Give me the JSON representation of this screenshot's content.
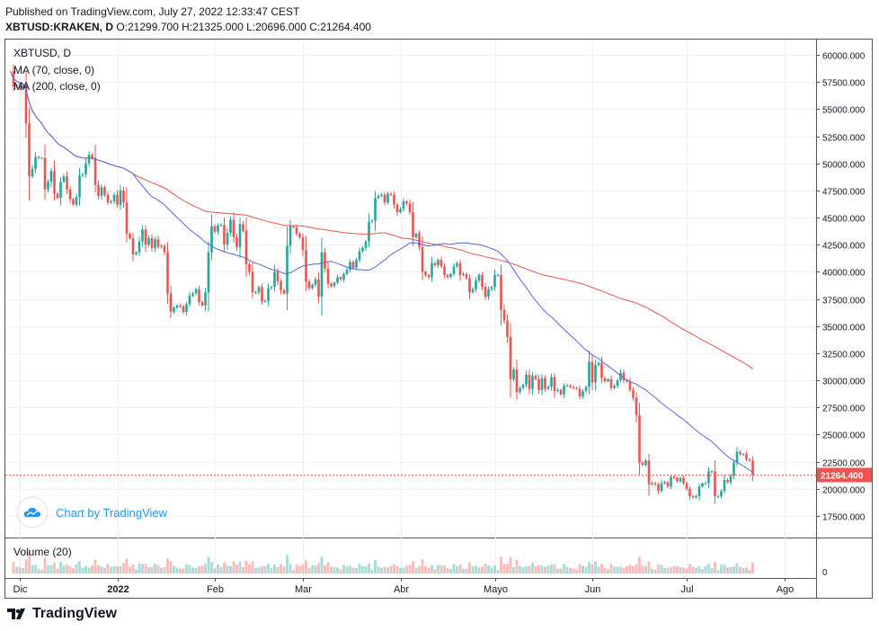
{
  "header": {
    "published": "Published on TradingView.com, July 27, 2022 12:33:47 CEST",
    "symbol": "XBTUSD:KRAKEN, D",
    "ohlc": "O:21299.700 H:21325.000 L:20696.000 C:21264.400"
  },
  "legend": {
    "symbol": "XBTUSD, D",
    "ma70": "MA (70, close, 0)",
    "ma200": "MA (200, close, 0)",
    "volume": "Volume (20)"
  },
  "branding": {
    "chart_by": "Chart by TradingView",
    "footer": "TradingView"
  },
  "colors": {
    "up": "#26a69a",
    "down": "#ef5350",
    "ma70": "#5b63e0",
    "ma200": "#e9534c",
    "link": "#2196f3"
  },
  "chart_data": {
    "type": "candlestick",
    "ylim": [
      15500,
      61500
    ],
    "y_ticks": [
      17500,
      20000,
      22500,
      25000,
      27500,
      30000,
      32500,
      35000,
      37500,
      40000,
      42500,
      45000,
      47500,
      50000,
      52500,
      55000,
      57500,
      60000
    ],
    "y_tick_labels": [
      "17500.000",
      "20000.000",
      "22500.000",
      "25000.000",
      "27500.000",
      "30000.000",
      "32500.000",
      "35000.000",
      "37500.000",
      "40000.000",
      "42500.000",
      "45000.000",
      "47500.000",
      "50000.000",
      "52500.000",
      "55000.000",
      "57500.000",
      "60000.000"
    ],
    "x_ticks": [
      {
        "label": "Dic",
        "day": 0
      },
      {
        "label": "2022",
        "day": 31
      },
      {
        "label": "Feb",
        "day": 62
      },
      {
        "label": "Mar",
        "day": 90
      },
      {
        "label": "Abr",
        "day": 121
      },
      {
        "label": "Mayo",
        "day": 151
      },
      {
        "label": "Jun",
        "day": 182
      },
      {
        "label": "Jul",
        "day": 212
      },
      {
        "label": "Ago",
        "day": 243
      }
    ],
    "last_price": 21264.4,
    "last_price_label": "21264.400",
    "volume_tick_label": "0",
    "series_closes": [
      [
        -3,
        58500
      ],
      [
        -2,
        57100
      ],
      [
        -1,
        57200
      ],
      [
        0,
        56900
      ],
      [
        1,
        57200
      ],
      [
        2,
        53700
      ],
      [
        3,
        48800
      ],
      [
        4,
        49500
      ],
      [
        5,
        50600
      ],
      [
        6,
        50500
      ],
      [
        7,
        50500
      ],
      [
        8,
        47600
      ],
      [
        9,
        48300
      ],
      [
        10,
        49300
      ],
      [
        11,
        47200
      ],
      [
        12,
        46800
      ],
      [
        13,
        48300
      ],
      [
        14,
        48800
      ],
      [
        15,
        47600
      ],
      [
        16,
        46700
      ],
      [
        17,
        46200
      ],
      [
        18,
        46900
      ],
      [
        19,
        48900
      ],
      [
        20,
        49000
      ],
      [
        21,
        50000
      ],
      [
        22,
        50800
      ],
      [
        23,
        50500
      ],
      [
        24,
        48000
      ],
      [
        25,
        47000
      ],
      [
        26,
        47800
      ],
      [
        27,
        47100
      ],
      [
        28,
        46400
      ],
      [
        29,
        46500
      ],
      [
        30,
        47100
      ],
      [
        31,
        46200
      ],
      [
        32,
        47500
      ],
      [
        33,
        46400
      ],
      [
        34,
        43500
      ],
      [
        35,
        43100
      ],
      [
        36,
        41600
      ],
      [
        37,
        41800
      ],
      [
        38,
        42800
      ],
      [
        39,
        43900
      ],
      [
        40,
        42500
      ],
      [
        41,
        43100
      ],
      [
        42,
        42200
      ],
      [
        43,
        43000
      ],
      [
        44,
        42300
      ],
      [
        45,
        42400
      ],
      [
        46,
        41800
      ],
      [
        47,
        38000
      ],
      [
        48,
        36300
      ],
      [
        49,
        36700
      ],
      [
        50,
        36900
      ],
      [
        51,
        36800
      ],
      [
        52,
        36300
      ],
      [
        53,
        37000
      ],
      [
        54,
        37800
      ],
      [
        55,
        38000
      ],
      [
        56,
        38400
      ],
      [
        57,
        37200
      ],
      [
        58,
        36900
      ],
      [
        59,
        38100
      ],
      [
        60,
        41800
      ],
      [
        61,
        44200
      ],
      [
        62,
        43700
      ],
      [
        63,
        44300
      ],
      [
        64,
        44300
      ],
      [
        65,
        42500
      ],
      [
        66,
        43600
      ],
      [
        67,
        44800
      ],
      [
        68,
        43200
      ],
      [
        69,
        42300
      ],
      [
        70,
        44400
      ],
      [
        71,
        43800
      ],
      [
        72,
        40700
      ],
      [
        73,
        40000
      ],
      [
        74,
        38100
      ],
      [
        75,
        38100
      ],
      [
        76,
        38600
      ],
      [
        77,
        37300
      ],
      [
        78,
        37300
      ],
      [
        79,
        38500
      ],
      [
        80,
        38600
      ],
      [
        81,
        40000
      ],
      [
        82,
        39100
      ],
      [
        83,
        38300
      ],
      [
        84,
        38000
      ],
      [
        85,
        42400
      ],
      [
        86,
        44200
      ],
      [
        87,
        44100
      ],
      [
        88,
        43500
      ],
      [
        89,
        43200
      ],
      [
        90,
        42000
      ],
      [
        91,
        39100
      ],
      [
        92,
        38500
      ],
      [
        93,
        38800
      ],
      [
        94,
        39300
      ],
      [
        95,
        37700
      ],
      [
        96,
        41800
      ],
      [
        97,
        40300
      ],
      [
        98,
        38900
      ],
      [
        99,
        38700
      ],
      [
        100,
        39000
      ],
      [
        101,
        39500
      ],
      [
        102,
        39300
      ],
      [
        103,
        39800
      ],
      [
        104,
        40200
      ],
      [
        105,
        40900
      ],
      [
        106,
        40400
      ],
      [
        107,
        41100
      ],
      [
        108,
        41900
      ],
      [
        109,
        42200
      ],
      [
        110,
        42800
      ],
      [
        111,
        44600
      ],
      [
        112,
        44700
      ],
      [
        113,
        46800
      ],
      [
        114,
        47000
      ],
      [
        115,
        47100
      ],
      [
        116,
        46400
      ],
      [
        117,
        47200
      ],
      [
        118,
        47100
      ],
      [
        119,
        46200
      ],
      [
        120,
        45500
      ],
      [
        121,
        45800
      ],
      [
        122,
        46500
      ],
      [
        123,
        46300
      ],
      [
        124,
        45500
      ],
      [
        125,
        43200
      ],
      [
        126,
        43500
      ],
      [
        127,
        42300
      ],
      [
        128,
        40000
      ],
      [
        129,
        39700
      ],
      [
        130,
        39500
      ],
      [
        131,
        40800
      ],
      [
        132,
        40600
      ],
      [
        133,
        41100
      ],
      [
        134,
        40500
      ],
      [
        135,
        39700
      ],
      [
        136,
        39500
      ],
      [
        137,
        39800
      ],
      [
        138,
        40500
      ],
      [
        139,
        40800
      ],
      [
        140,
        39700
      ],
      [
        141,
        39800
      ],
      [
        142,
        39400
      ],
      [
        143,
        38100
      ],
      [
        144,
        38400
      ],
      [
        145,
        39200
      ],
      [
        146,
        39700
      ],
      [
        147,
        38600
      ],
      [
        148,
        37700
      ],
      [
        149,
        38400
      ],
      [
        150,
        38600
      ],
      [
        151,
        39700
      ],
      [
        152,
        39700
      ],
      [
        153,
        36500
      ],
      [
        154,
        35500
      ],
      [
        155,
        34000
      ],
      [
        156,
        30100
      ],
      [
        157,
        31000
      ],
      [
        158,
        28900
      ],
      [
        159,
        29300
      ],
      [
        160,
        29600
      ],
      [
        161,
        30500
      ],
      [
        162,
        29200
      ],
      [
        163,
        30400
      ],
      [
        164,
        30100
      ],
      [
        165,
        29100
      ],
      [
        166,
        30200
      ],
      [
        167,
        29200
      ],
      [
        168,
        29400
      ],
      [
        169,
        30300
      ],
      [
        170,
        29000
      ],
      [
        171,
        29100
      ],
      [
        172,
        28700
      ],
      [
        173,
        29500
      ],
      [
        174,
        29500
      ],
      [
        175,
        29400
      ],
      [
        176,
        29300
      ],
      [
        177,
        29200
      ],
      [
        178,
        28500
      ],
      [
        179,
        29000
      ],
      [
        180,
        29400
      ],
      [
        181,
        31700
      ],
      [
        182,
        29800
      ],
      [
        183,
        31400
      ],
      [
        184,
        31600
      ],
      [
        185,
        30200
      ],
      [
        186,
        29900
      ],
      [
        187,
        30100
      ],
      [
        188,
        29300
      ],
      [
        189,
        29500
      ],
      [
        190,
        30000
      ],
      [
        191,
        30700
      ],
      [
        192,
        30000
      ],
      [
        193,
        29900
      ],
      [
        194,
        29100
      ],
      [
        195,
        28400
      ],
      [
        196,
        26800
      ],
      [
        197,
        22400
      ],
      [
        198,
        22200
      ],
      [
        199,
        22600
      ],
      [
        200,
        20400
      ],
      [
        201,
        20500
      ],
      [
        202,
        20400
      ],
      [
        203,
        19800
      ],
      [
        204,
        20500
      ],
      [
        205,
        20600
      ],
      [
        206,
        20200
      ],
      [
        207,
        21100
      ],
      [
        208,
        21000
      ],
      [
        209,
        20700
      ],
      [
        210,
        21000
      ],
      [
        211,
        20500
      ],
      [
        212,
        20000
      ],
      [
        213,
        19300
      ],
      [
        214,
        19200
      ],
      [
        215,
        19300
      ],
      [
        216,
        20200
      ],
      [
        217,
        20500
      ],
      [
        218,
        20500
      ],
      [
        219,
        21600
      ],
      [
        220,
        21600
      ],
      [
        221,
        19300
      ],
      [
        222,
        19300
      ],
      [
        223,
        19800
      ],
      [
        224,
        20800
      ],
      [
        225,
        20600
      ],
      [
        226,
        21200
      ],
      [
        227,
        22400
      ],
      [
        228,
        23400
      ],
      [
        229,
        23200
      ],
      [
        230,
        23200
      ],
      [
        231,
        22700
      ],
      [
        232,
        22600
      ],
      [
        233,
        21300
      ]
    ]
  }
}
